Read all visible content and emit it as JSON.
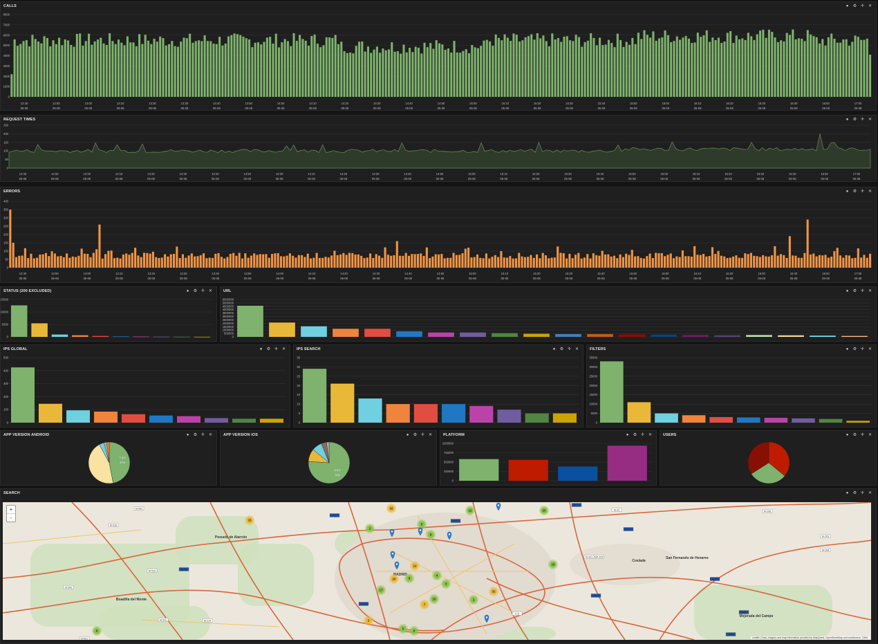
{
  "panel_tools": [
    "●",
    "⚙",
    "✛",
    "✕"
  ],
  "panels": {
    "calls": "CALLS",
    "request_times": "REQUEST TIMES",
    "errors": "ERRORS",
    "status": "STATUS (200 EXCLUDED)",
    "url": "URL",
    "ips_global": "IPS GLOBAL",
    "ips_search": "IPS SEARCH",
    "filters": "FILTERS",
    "appversion_android": "APP VERSION ANDROID",
    "appversion_ios": "APP VERSION IOS",
    "platform": "PLATFORM",
    "users": "USERS",
    "search": "SEARCH"
  },
  "time_ticks": [
    "12:40",
    "12:50",
    "13:00",
    "13:10",
    "13:20",
    "13:30",
    "13:40",
    "13:50",
    "14:00",
    "14:10",
    "14:20",
    "14:30",
    "14:40",
    "14:50",
    "15:00",
    "15:10",
    "15:20",
    "15:30",
    "15:40",
    "15:50",
    "16:00",
    "16:10",
    "16:20",
    "16:30",
    "16:40",
    "16:50",
    "17:00"
  ],
  "time_date": "05-08",
  "colors": {
    "green": "#7eb26d",
    "yellow": "#eab839",
    "cyan": "#6ed0e0",
    "orange": "#ef843c",
    "red": "#e24d42",
    "blue": "#1f78c1",
    "pink": "#ba43a9",
    "purple": "#705da0",
    "darkgreen": "#508642",
    "gold": "#cca300",
    "error_bar": "#f29544",
    "area_fill": "#2e3b2a",
    "area_line": "#6b8f5a"
  },
  "chart_data": [
    {
      "type": "bar",
      "title": "CALLS",
      "y_ticks": [
        "0",
        "1000",
        "2000",
        "3000",
        "4000",
        "5000",
        "6000",
        "7000",
        "8000"
      ],
      "ylim": [
        0,
        8000
      ],
      "x_ticks": "time_ticks",
      "values_note": "per-minute counts, mostly 5000-6500"
    },
    {
      "type": "area",
      "title": "REQUEST TIMES",
      "y_ticks": [
        "0",
        "50",
        "100",
        "150",
        "200",
        "250"
      ],
      "ylim": [
        0,
        250
      ],
      "x_ticks": "time_ticks"
    },
    {
      "type": "bar",
      "title": "ERRORS",
      "y_ticks": [
        "0",
        "50",
        "100",
        "150",
        "200",
        "250",
        "300",
        "350",
        "400"
      ],
      "ylim": [
        0,
        400
      ],
      "x_ticks": "time_ticks"
    },
    {
      "type": "bar",
      "title": "STATUS (200 EXCLUDED)",
      "y_ticks": [
        "0",
        "5000",
        "10000",
        "15000"
      ],
      "ylim": [
        0,
        16000
      ],
      "values": [
        13500,
        5800,
        1000,
        700,
        400,
        200,
        150,
        100,
        80,
        40
      ]
    },
    {
      "type": "bar",
      "title": "URL",
      "y_ticks": [
        "0",
        "500000",
        "1000000",
        "1500000",
        "2000000",
        "2500000",
        "3000000",
        "3500000",
        "4000000",
        "4500000",
        "5000000",
        "6000000"
      ],
      "ylim": [
        0,
        6000000
      ],
      "values": [
        5000000,
        2300000,
        1700000,
        1300000,
        1300000,
        900000,
        700000,
        700000,
        600000,
        500000,
        450000,
        450000,
        400000,
        350000,
        300000,
        250000,
        300000,
        250000,
        200000,
        150000
      ]
    },
    {
      "type": "bar",
      "title": "IPS GLOBAL",
      "y_ticks": [
        "0",
        "100",
        "200",
        "300",
        "400",
        "500"
      ],
      "ylim": [
        0,
        500
      ],
      "values": [
        425,
        145,
        95,
        85,
        65,
        55,
        50,
        35,
        30,
        30
      ]
    },
    {
      "type": "bar",
      "title": "IPS SEARCH",
      "y_ticks": [
        "0",
        "5",
        "10",
        "15",
        "20",
        "25",
        "30",
        "35"
      ],
      "ylim": [
        0,
        35
      ],
      "values": [
        29,
        21,
        13,
        10,
        10,
        10,
        9,
        7,
        5,
        5
      ]
    },
    {
      "type": "bar",
      "title": "FILTERS",
      "y_ticks": [
        "0",
        "5000",
        "10000",
        "15000",
        "20000",
        "25000",
        "30000",
        "35000"
      ],
      "ylim": [
        0,
        35000
      ],
      "values": [
        33000,
        11000,
        5000,
        4000,
        3000,
        2800,
        2600,
        2300,
        2000,
        1000
      ]
    },
    {
      "type": "pie",
      "title": "APP VERSION ANDROID",
      "slices": [
        {
          "label": "7.5.0",
          "value": 47
        },
        {
          "label": "",
          "value": 45
        },
        {
          "label": "",
          "value": 4
        },
        {
          "label": "",
          "value": 2
        },
        {
          "label": "",
          "value": 2
        }
      ]
    },
    {
      "type": "pie",
      "title": "APP VERSION IOS",
      "slices": [
        {
          "label": "8.5.0",
          "value": 76
        },
        {
          "label": "",
          "value": 10
        },
        {
          "label": "",
          "value": 8
        },
        {
          "label": "",
          "value": 4
        },
        {
          "label": "",
          "value": 2
        }
      ]
    },
    {
      "type": "bar",
      "title": "PLATFORM",
      "y_ticks": [
        "0",
        "250000",
        "500000",
        "750000",
        "1000000"
      ],
      "ylim": [
        0,
        1000000
      ],
      "values": [
        580000,
        560000,
        380000,
        940000
      ]
    },
    {
      "type": "pie",
      "title": "USERS",
      "slices": [
        {
          "label": "",
          "value": 36
        },
        {
          "label": "",
          "value": 30
        },
        {
          "label": "",
          "value": 34
        }
      ]
    }
  ],
  "pie_labels": {
    "android_main": "7.5.0",
    "android_pct": "47%",
    "ios_main": "8.5.0",
    "ios_pct": "76%"
  },
  "map": {
    "zoom_in": "+",
    "zoom_out": "-",
    "attribution": "Leaflet | Data, imagery and map information provided by MapQuest, OpenStreetMap and contributors, ODbL",
    "places": [
      "Pozuelo de Alarcón",
      "Boadilla del Monte",
      "Coslada",
      "San Fernando de Henares",
      "Mejorada del Campo",
      "MADRID"
    ],
    "roads": [
      "M-503",
      "M-516",
      "M-513",
      "M-500",
      "M-40",
      "A-6",
      "M-30",
      "A-2",
      "M-14",
      "M-22",
      "M-21",
      "M-206",
      "M-203",
      "M-50",
      "A-3",
      "M-45",
      "E-5",
      "M-501",
      "M-511",
      "M-214",
      "M-201",
      "MP-203",
      "M-208",
      "A-5"
    ],
    "clusters": [
      "32",
      "15",
      "2",
      "5",
      "8",
      "12",
      "20",
      "6",
      "4",
      "3",
      "17",
      "10",
      "7",
      "1"
    ]
  }
}
